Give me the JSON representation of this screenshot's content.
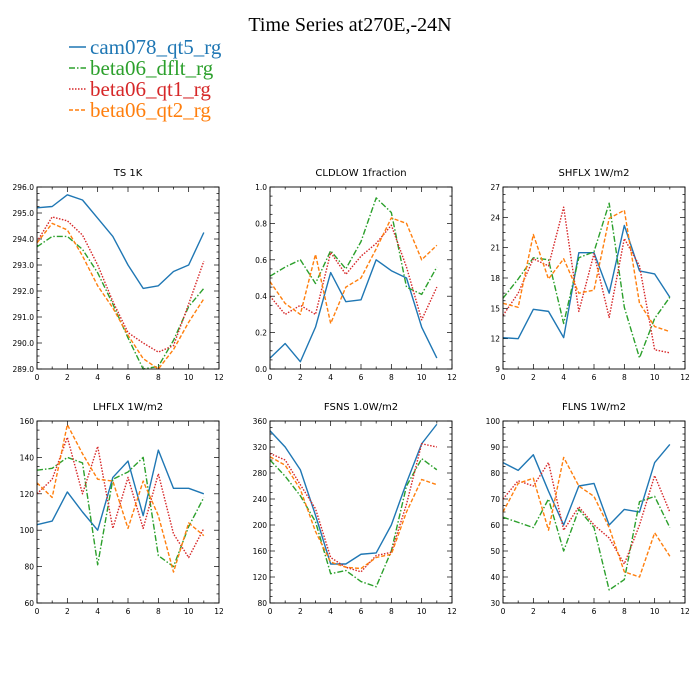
{
  "figure": {
    "title": "Time Series at270E,-24N"
  },
  "legend": [
    {
      "name": "cam078_qt5_rg",
      "color": "#1f77b4",
      "dash": "solid"
    },
    {
      "name": "beta06_dflt_rg",
      "color": "#2ca02c",
      "dash": "dashdot"
    },
    {
      "name": "beta06_qt1_rg",
      "color": "#d62728",
      "dash": "dot"
    },
    {
      "name": "beta06_qt2_rg",
      "color": "#ff7f0e",
      "dash": "dash"
    }
  ],
  "chart_data": [
    {
      "type": "line",
      "title": "TS   1K",
      "xlim": [
        0,
        12
      ],
      "xticks": [
        0,
        2,
        4,
        6,
        8,
        10,
        12
      ],
      "ylim": [
        289.0,
        296.0
      ],
      "yticks": [
        289.0,
        290.0,
        291.0,
        292.0,
        293.0,
        294.0,
        295.0,
        296.0
      ],
      "ydec": 1,
      "x": [
        0,
        1,
        2,
        3,
        4,
        5,
        6,
        7,
        8,
        9,
        10,
        11
      ],
      "series": [
        {
          "name": "cam078_qt5_rg",
          "values": [
            295.2,
            295.25,
            295.7,
            295.5,
            294.8,
            294.1,
            293.0,
            292.1,
            292.2,
            292.75,
            293.0,
            294.25
          ]
        },
        {
          "name": "beta06_dflt_rg",
          "values": [
            293.7,
            294.1,
            294.1,
            293.6,
            292.7,
            291.5,
            290.2,
            289.0,
            289.1,
            290.1,
            291.4,
            292.1
          ]
        },
        {
          "name": "beta06_qt1_rg",
          "values": [
            293.9,
            294.85,
            294.7,
            294.15,
            293.0,
            291.6,
            290.4,
            290.0,
            289.65,
            289.9,
            291.5,
            293.15
          ]
        },
        {
          "name": "beta06_qt2_rg",
          "values": [
            293.85,
            294.6,
            294.35,
            293.35,
            292.2,
            291.35,
            290.3,
            289.4,
            289.0,
            289.75,
            290.8,
            291.7
          ]
        }
      ]
    },
    {
      "type": "line",
      "title": "CLDLOW   1fraction",
      "xlim": [
        0,
        12
      ],
      "xticks": [
        0,
        2,
        4,
        6,
        8,
        10,
        12
      ],
      "ylim": [
        0.0,
        1.0
      ],
      "yticks": [
        0.0,
        0.2,
        0.4,
        0.6,
        0.8,
        1.0
      ],
      "ydec": 1,
      "x": [
        0,
        1,
        2,
        3,
        4,
        5,
        6,
        7,
        8,
        9,
        10,
        11
      ],
      "series": [
        {
          "name": "cam078_qt5_rg",
          "values": [
            0.06,
            0.14,
            0.04,
            0.23,
            0.53,
            0.37,
            0.38,
            0.6,
            0.54,
            0.5,
            0.23,
            0.06
          ]
        },
        {
          "name": "beta06_dflt_rg",
          "values": [
            0.51,
            0.56,
            0.6,
            0.47,
            0.65,
            0.55,
            0.7,
            0.94,
            0.86,
            0.45,
            0.41,
            0.56
          ]
        },
        {
          "name": "beta06_qt1_rg",
          "values": [
            0.4,
            0.3,
            0.35,
            0.3,
            0.64,
            0.52,
            0.62,
            0.69,
            0.79,
            0.56,
            0.27,
            0.45
          ]
        },
        {
          "name": "beta06_qt2_rg",
          "values": [
            0.48,
            0.36,
            0.3,
            0.63,
            0.25,
            0.45,
            0.5,
            0.66,
            0.83,
            0.8,
            0.6,
            0.68
          ]
        }
      ]
    },
    {
      "type": "line",
      "title": "SHFLX   1W/m2",
      "xlim": [
        0,
        12
      ],
      "xticks": [
        0,
        2,
        4,
        6,
        8,
        10,
        12
      ],
      "ylim": [
        9,
        27
      ],
      "yticks": [
        9,
        12,
        15,
        18,
        21,
        24,
        27
      ],
      "ydec": 0,
      "x": [
        0,
        1,
        2,
        3,
        4,
        5,
        6,
        7,
        8,
        9,
        10,
        11
      ],
      "series": [
        {
          "name": "cam078_qt5_rg",
          "values": [
            12.1,
            12.0,
            14.9,
            14.7,
            12.1,
            20.5,
            20.5,
            16.5,
            23.2,
            18.7,
            18.4,
            16.1
          ]
        },
        {
          "name": "beta06_dflt_rg",
          "values": [
            16.0,
            17.9,
            20.0,
            19.8,
            13.5,
            20.0,
            20.6,
            25.4,
            15.1,
            10.1,
            14.0,
            16.1
          ]
        },
        {
          "name": "beta06_qt1_rg",
          "values": [
            14.3,
            16.5,
            19.9,
            19.2,
            25.0,
            14.7,
            20.4,
            14.1,
            21.9,
            19.2,
            10.9,
            10.6
          ]
        },
        {
          "name": "beta06_qt2_rg",
          "values": [
            15.5,
            15.1,
            22.3,
            17.9,
            19.9,
            16.5,
            16.8,
            23.9,
            24.7,
            15.5,
            13.2,
            12.7
          ]
        }
      ]
    },
    {
      "type": "line",
      "title": "LHFLX   1W/m2",
      "xlim": [
        0,
        12
      ],
      "xticks": [
        0,
        2,
        4,
        6,
        8,
        10,
        12
      ],
      "ylim": [
        60,
        160
      ],
      "yticks": [
        60,
        80,
        100,
        120,
        140,
        160
      ],
      "ydec": 0,
      "x": [
        0,
        1,
        2,
        3,
        4,
        5,
        6,
        7,
        8,
        9,
        10,
        11
      ],
      "series": [
        {
          "name": "cam078_qt5_rg",
          "values": [
            103,
            105,
            121,
            110,
            100,
            129,
            138,
            108,
            144,
            123,
            123,
            120
          ]
        },
        {
          "name": "beta06_dflt_rg",
          "values": [
            133,
            134,
            140,
            137,
            81,
            128,
            132,
            140,
            86,
            80,
            102,
            118
          ]
        },
        {
          "name": "beta06_qt1_rg",
          "values": [
            120,
            128,
            151,
            120,
            146,
            101,
            129,
            101,
            131,
            98,
            85,
            101
          ]
        },
        {
          "name": "beta06_qt2_rg",
          "values": [
            126,
            118,
            158,
            142,
            128,
            127,
            101,
            127,
            108,
            77,
            104,
            97
          ]
        }
      ]
    },
    {
      "type": "line",
      "title": "FSNS   1.0W/m2",
      "xlim": [
        0,
        12
      ],
      "xticks": [
        0,
        2,
        4,
        6,
        8,
        10,
        12
      ],
      "ylim": [
        80,
        360
      ],
      "yticks": [
        80,
        120,
        160,
        200,
        240,
        280,
        320,
        360
      ],
      "ydec": 0,
      "x": [
        0,
        1,
        2,
        3,
        4,
        5,
        6,
        7,
        8,
        9,
        10,
        11
      ],
      "series": [
        {
          "name": "cam078_qt5_rg",
          "values": [
            345,
            320,
            285,
            215,
            140,
            140,
            155,
            157,
            200,
            265,
            325,
            355
          ]
        },
        {
          "name": "beta06_dflt_rg",
          "values": [
            300,
            275,
            245,
            205,
            125,
            130,
            113,
            105,
            160,
            260,
            302,
            285
          ]
        },
        {
          "name": "beta06_qt1_rg",
          "values": [
            310,
            300,
            262,
            225,
            150,
            135,
            128,
            153,
            158,
            232,
            325,
            320
          ]
        },
        {
          "name": "beta06_qt2_rg",
          "values": [
            305,
            292,
            255,
            190,
            143,
            135,
            133,
            150,
            155,
            220,
            270,
            262
          ]
        }
      ]
    },
    {
      "type": "line",
      "title": "FLNS   1W/m2",
      "xlim": [
        0,
        12
      ],
      "xticks": [
        0,
        2,
        4,
        6,
        8,
        10,
        12
      ],
      "ylim": [
        30,
        100
      ],
      "yticks": [
        30,
        40,
        50,
        60,
        70,
        80,
        90,
        100
      ],
      "ydec": 0,
      "x": [
        0,
        1,
        2,
        3,
        4,
        5,
        6,
        7,
        8,
        9,
        10,
        11
      ],
      "series": [
        {
          "name": "cam078_qt5_rg",
          "values": [
            84,
            81,
            87,
            73,
            60,
            75,
            76,
            60,
            66,
            65,
            84,
            91
          ]
        },
        {
          "name": "beta06_dflt_rg",
          "values": [
            63,
            61,
            59,
            70,
            50,
            66,
            59,
            35,
            39,
            69,
            71,
            59
          ]
        },
        {
          "name": "beta06_qt1_rg",
          "values": [
            70,
            77,
            75,
            84,
            58,
            67,
            60,
            55,
            45,
            60,
            79,
            65
          ]
        },
        {
          "name": "beta06_qt2_rg",
          "values": [
            65,
            76,
            78,
            58,
            86,
            75,
            71,
            59,
            42,
            40,
            57,
            48
          ]
        }
      ]
    }
  ]
}
